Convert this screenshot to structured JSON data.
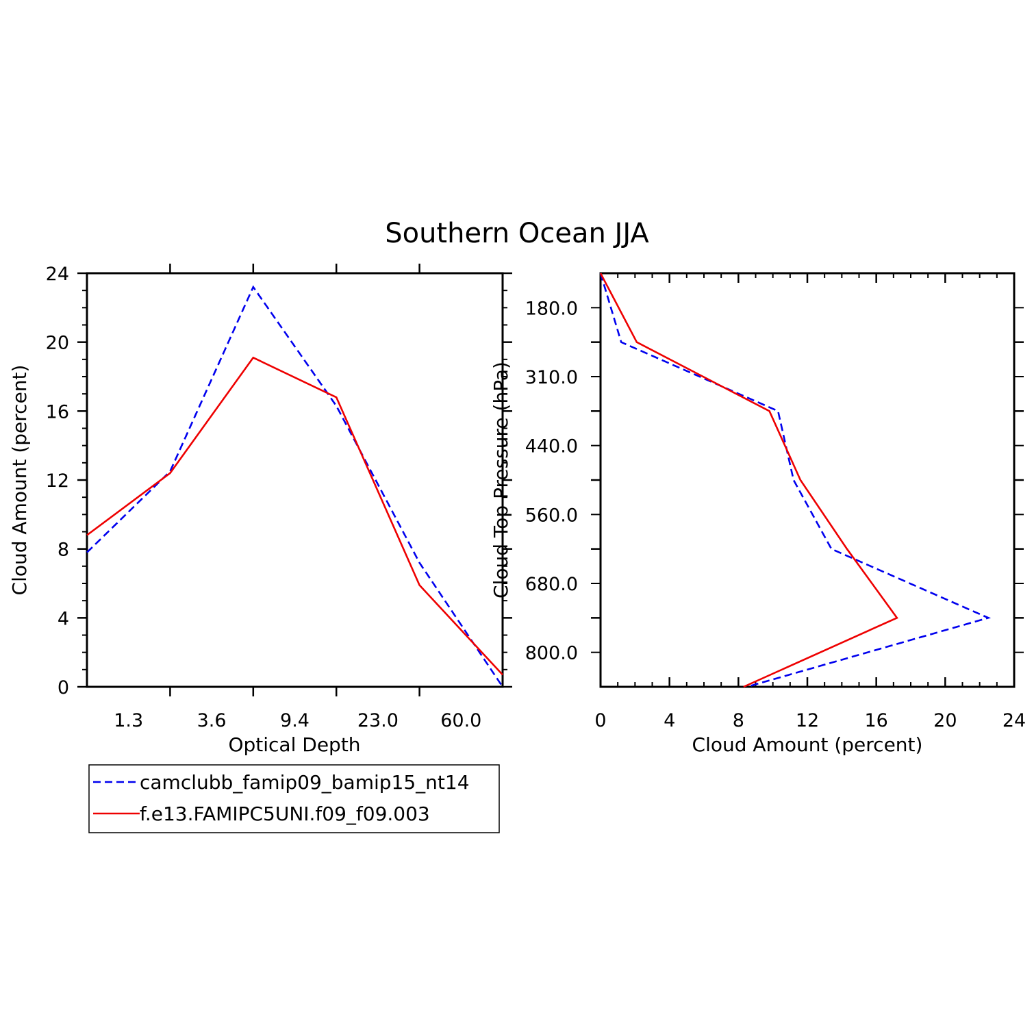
{
  "title": "Southern Ocean JJA",
  "colors": {
    "series_a": "#0000ee",
    "series_b": "#ee0000"
  },
  "chart_data": [
    {
      "type": "line",
      "xlabel": "Optical Depth",
      "ylabel": "Cloud Amount (percent)",
      "x_tick_labels": [
        "1.3",
        "3.6",
        "9.4",
        "23.0",
        "60.0"
      ],
      "x_bins": 5,
      "ylim": [
        0,
        24
      ],
      "y_ticks": [
        0,
        4,
        8,
        12,
        16,
        20,
        24
      ],
      "series": [
        {
          "name": "camclubb_famip09_bamip15_nt14",
          "style": "dashed",
          "color": "#0000ee",
          "x": [
            0,
            1,
            2,
            3,
            4,
            5
          ],
          "y": [
            7.8,
            12.5,
            23.2,
            16.3,
            7.2,
            0.0
          ]
        },
        {
          "name": "f.e13.FAMIPC5UNI.f09_f09.003",
          "style": "solid",
          "color": "#ee0000",
          "x": [
            0,
            1,
            2,
            3,
            4,
            5
          ],
          "y": [
            8.8,
            12.4,
            19.1,
            16.8,
            5.9,
            0.7
          ]
        }
      ]
    },
    {
      "type": "line",
      "xlabel": "Cloud Amount (percent)",
      "ylabel": "Cloud Top Pressure (hPa)",
      "xlim": [
        0,
        24
      ],
      "x_ticks": [
        0,
        4,
        8,
        12,
        16,
        20,
        24
      ],
      "y_tick_labels": [
        "180.0",
        "310.0",
        "440.0",
        "560.0",
        "680.0",
        "800.0"
      ],
      "y_bins": 6,
      "series": [
        {
          "name": "camclubb_famip09_bamip15_nt14",
          "style": "dashed",
          "color": "#0000ee",
          "x": [
            0.0,
            1.2,
            10.3,
            11.2,
            13.4,
            22.5,
            8.5
          ],
          "level": [
            0,
            1,
            2,
            3,
            4,
            5,
            6
          ]
        },
        {
          "name": "f.e13.FAMIPC5UNI.f09_f09.003",
          "style": "solid",
          "color": "#ee0000",
          "x": [
            0.0,
            2.1,
            9.8,
            11.6,
            14.3,
            17.2,
            8.3
          ],
          "level": [
            0,
            1,
            2,
            3,
            4,
            5,
            6
          ]
        }
      ]
    }
  ],
  "legend": {
    "entries": [
      {
        "label": "camclubb_famip09_bamip15_nt14",
        "style": "dashed",
        "color": "#0000ee"
      },
      {
        "label": "f.e13.FAMIPC5UNI.f09_f09.003",
        "style": "solid",
        "color": "#ee0000"
      }
    ]
  }
}
